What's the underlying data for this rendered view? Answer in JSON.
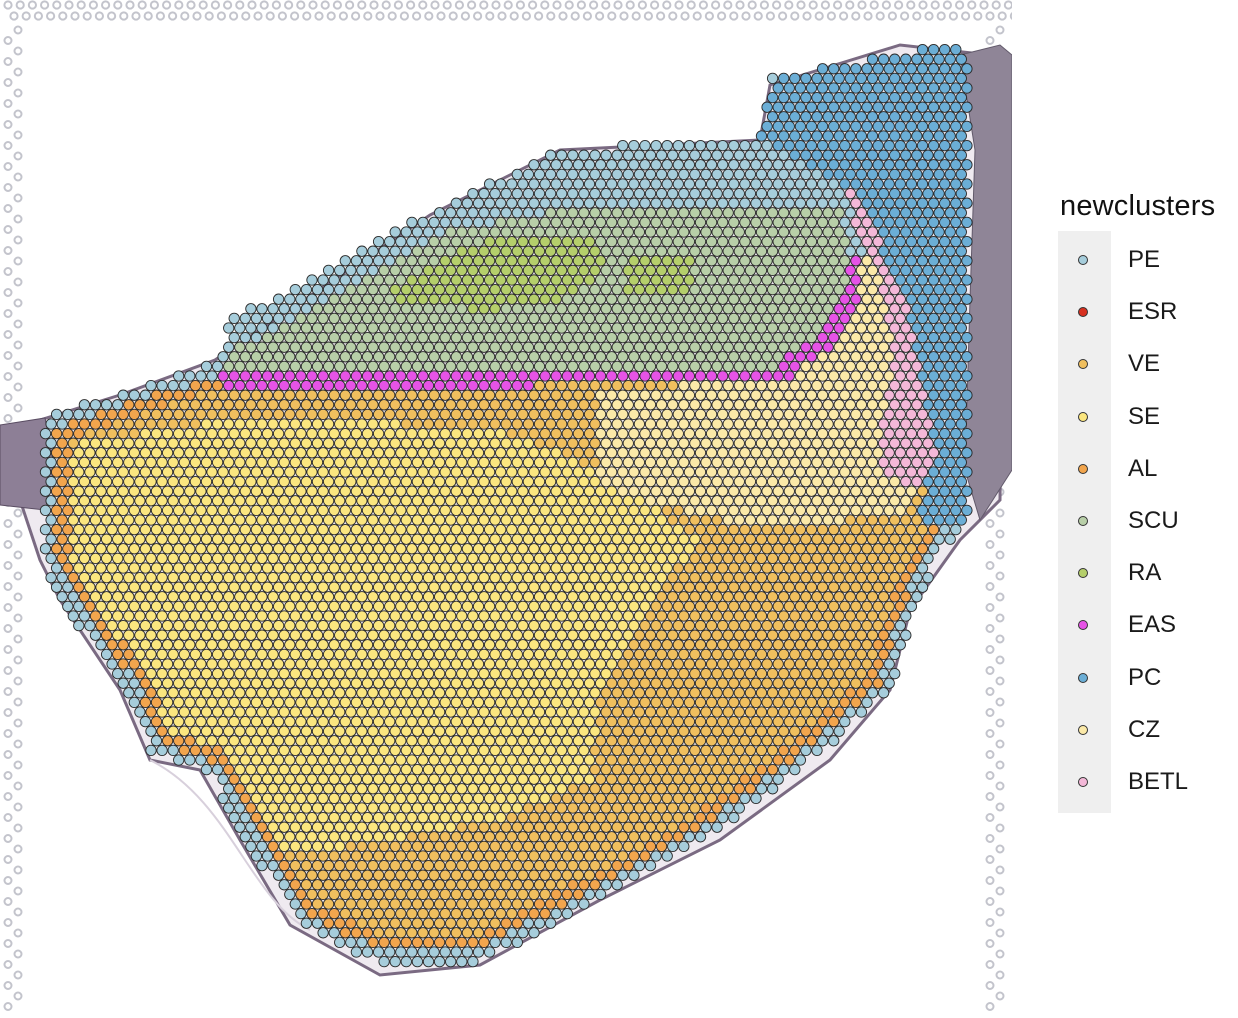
{
  "chart_data": {
    "type": "scatter",
    "description_role": "spatial transcriptomics spot map over tissue image",
    "legend_title": "newclusters",
    "legend_position": "right",
    "grid": false,
    "categories": [
      "PE",
      "ESR",
      "VE",
      "SE",
      "AL",
      "SCU",
      "RA",
      "EAS",
      "PC",
      "CZ",
      "BETL"
    ],
    "colors": {
      "PE": "#a6cddb",
      "ESR": "#d7301f",
      "VE": "#f0bf5e",
      "SE": "#fbe67f",
      "AL": "#f2a54d",
      "SCU": "#b8cfa8",
      "RA": "#b5cf6b",
      "EAS": "#e653e6",
      "PC": "#6baed6",
      "CZ": "#fbe9a8",
      "BETL": "#f4b8d8"
    },
    "spot_outline_color": "#2b2b2b"
  }
}
